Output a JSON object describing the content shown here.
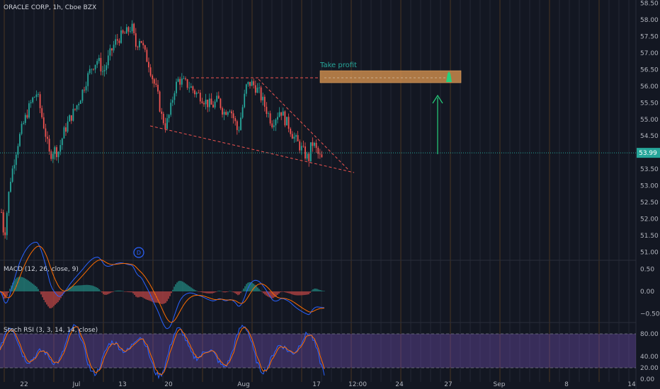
{
  "header": {
    "title": "ORACLE CORP, 1h, Cboe BZX"
  },
  "colors": {
    "background": "#131722",
    "up": "#26a69a",
    "down": "#ef5350",
    "grid_session": "#3a2e1f",
    "macd_line": "#2962ff",
    "signal_line": "#ff6d00",
    "stoch_k": "#2962ff",
    "stoch_d": "#ff6d00",
    "stoch_band": "#7e57c2",
    "take_profit_box": "#c98a4b",
    "arrow": "#26d07c",
    "current_price": "#26a69a"
  },
  "chart_data": [
    {
      "type": "candlestick",
      "name": "price",
      "ylim": [
        50.75,
        58.6
      ],
      "y_ticks": [
        "58.50",
        "58.00",
        "57.50",
        "57.00",
        "56.50",
        "56.00",
        "55.50",
        "55.00",
        "54.50",
        "54.00",
        "53.50",
        "53.00",
        "52.50",
        "52.00",
        "51.50",
        "51.00"
      ],
      "current_price_label": "53.99",
      "current_price": 53.99,
      "x_ticks": [
        "22",
        "Jul",
        "13",
        "20",
        "Aug",
        "17",
        "12:00",
        "24",
        "27",
        "Sep",
        "8",
        "14"
      ],
      "path": [
        [
          0,
          52.6
        ],
        [
          6,
          51.4
        ],
        [
          14,
          53.1
        ],
        [
          24,
          54.2
        ],
        [
          32,
          54.8
        ],
        [
          40,
          55.3
        ],
        [
          46,
          55.6
        ],
        [
          52,
          55.8
        ],
        [
          58,
          55.2
        ],
        [
          64,
          54.6
        ],
        [
          70,
          53.9
        ],
        [
          76,
          54.1
        ],
        [
          82,
          54.0
        ],
        [
          90,
          54.6
        ],
        [
          98,
          55.0
        ],
        [
          106,
          55.3
        ],
        [
          114,
          55.7
        ],
        [
          122,
          56.2
        ],
        [
          130,
          56.6
        ],
        [
          138,
          56.8
        ],
        [
          146,
          56.4
        ],
        [
          154,
          56.9
        ],
        [
          162,
          57.3
        ],
        [
          170,
          57.5
        ],
        [
          178,
          57.6
        ],
        [
          186,
          57.8
        ],
        [
          192,
          57.2
        ],
        [
          198,
          57.5
        ],
        [
          204,
          57.0
        ],
        [
          210,
          56.7
        ],
        [
          216,
          56.2
        ],
        [
          222,
          55.8
        ],
        [
          228,
          55.1
        ],
        [
          234,
          54.8
        ],
        [
          240,
          55.2
        ],
        [
          246,
          55.9
        ],
        [
          252,
          56.2
        ],
        [
          260,
          56.1
        ],
        [
          268,
          56.0
        ],
        [
          276,
          55.8
        ],
        [
          284,
          55.7
        ],
        [
          292,
          55.5
        ],
        [
          300,
          55.4
        ],
        [
          308,
          55.6
        ],
        [
          316,
          55.2
        ],
        [
          324,
          55.4
        ],
        [
          332,
          54.9
        ],
        [
          336,
          54.6
        ],
        [
          342,
          55.3
        ],
        [
          348,
          56.0
        ],
        [
          354,
          56.1
        ],
        [
          360,
          56.0
        ],
        [
          366,
          55.8
        ],
        [
          372,
          55.5
        ],
        [
          378,
          55.2
        ],
        [
          384,
          54.9
        ],
        [
          390,
          55.1
        ],
        [
          396,
          55.3
        ],
        [
          402,
          55.0
        ],
        [
          408,
          54.8
        ],
        [
          414,
          54.5
        ],
        [
          420,
          54.3
        ],
        [
          426,
          54.1
        ],
        [
          432,
          53.9
        ],
        [
          436,
          53.8
        ],
        [
          440,
          54.3
        ],
        [
          444,
          54.2
        ],
        [
          450,
          53.9
        ],
        [
          456,
          53.75
        ]
      ]
    },
    {
      "type": "line",
      "name": "macd",
      "title": "MACD (12, 26, close, 9)",
      "ylim": [
        -0.7,
        0.7
      ],
      "y_ticks": [
        "0.50",
        "0.00",
        "−0.50"
      ]
    },
    {
      "type": "line",
      "name": "stoch_rsi",
      "title": "Stoch RSI (3, 3, 14, 14, close)",
      "ylim": [
        -5,
        100
      ],
      "y_ticks": [
        "80.00",
        "40.00",
        "20.00",
        "0.00"
      ],
      "band": [
        20,
        80
      ]
    }
  ],
  "annotations": {
    "take_profit_label": "Take profit",
    "take_profit_price": [
      56.1,
      56.45
    ],
    "resistance_price": 56.25,
    "dividend_marker": "D"
  }
}
